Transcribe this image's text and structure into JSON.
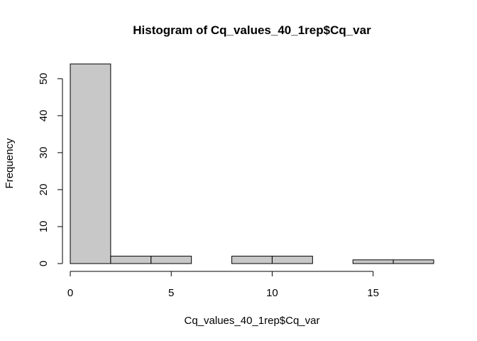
{
  "chart_data": {
    "type": "bar",
    "title": "Histogram of Cq_values_40_1rep$Cq_var",
    "xlabel": "Cq_values_40_1rep$Cq_var",
    "ylabel": "Frequency",
    "bins": [
      {
        "x0": 0,
        "x1": 2,
        "count": 54
      },
      {
        "x0": 2,
        "x1": 4,
        "count": 2
      },
      {
        "x0": 4,
        "x1": 6,
        "count": 2
      },
      {
        "x0": 6,
        "x1": 8,
        "count": 0
      },
      {
        "x0": 8,
        "x1": 10,
        "count": 2
      },
      {
        "x0": 10,
        "x1": 12,
        "count": 2
      },
      {
        "x0": 12,
        "x1": 14,
        "count": 0
      },
      {
        "x0": 14,
        "x1": 16,
        "count": 1
      },
      {
        "x0": 16,
        "x1": 18,
        "count": 1
      }
    ],
    "x_ticks": [
      "0",
      "5",
      "10",
      "15"
    ],
    "y_ticks": [
      "0",
      "10",
      "20",
      "30",
      "40",
      "50"
    ],
    "xlim": [
      0,
      18
    ],
    "ylim": [
      0,
      54
    ],
    "grid": false,
    "legend": "none",
    "bar_fill": "#c8c8c8",
    "bar_stroke": "#000000"
  }
}
